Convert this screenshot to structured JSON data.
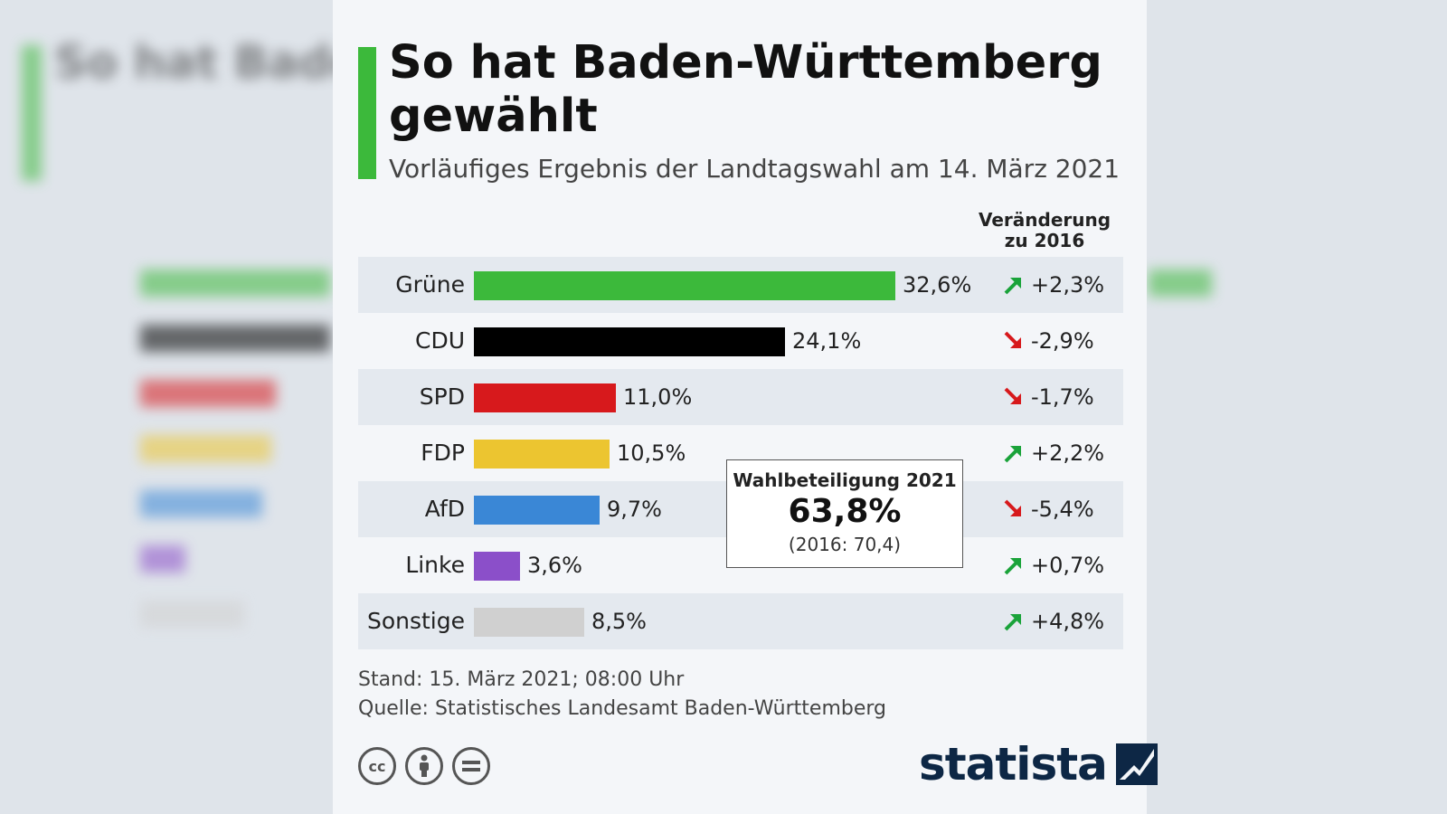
{
  "header": {
    "title": "So hat Baden-Württemberg gewählt",
    "subtitle": "Vorläufiges Ergebnis der Landtagswahl am 14. März 2021",
    "change_heading": "Veränderung zu 2016"
  },
  "chart_data": {
    "type": "bar",
    "orientation": "horizontal",
    "title": "So hat Baden-Württemberg gewählt",
    "categories": [
      "Grüne",
      "CDU",
      "SPD",
      "FDP",
      "AfD",
      "Linke",
      "Sonstige"
    ],
    "values": [
      32.6,
      24.1,
      11.0,
      10.5,
      9.7,
      3.6,
      8.5
    ],
    "value_labels": [
      "32,6%",
      "24,1%",
      "11,0%",
      "10,5%",
      "9,7%",
      "3,6%",
      "8,5%"
    ],
    "colors": [
      "#3cb93b",
      "#000000",
      "#d7191c",
      "#ecc530",
      "#3a87d6",
      "#8b4fc9",
      "#d0d0d0"
    ],
    "changes": [
      2.3,
      -2.9,
      -1.7,
      2.2,
      -5.4,
      0.7,
      4.8
    ],
    "change_labels": [
      "+2,3%",
      "-2,9%",
      "-1,7%",
      "+2,2%",
      "-5,4%",
      "+0,7%",
      "+4,8%"
    ],
    "xlim": [
      0,
      32.6
    ],
    "grid": false,
    "legend": "none"
  },
  "turnout": {
    "label": "Wahlbeteiligung 2021",
    "value": "63,8%",
    "previous": "(2016: 70,4)"
  },
  "footer": {
    "stand": "Stand: 15. März 2021; 08:00 Uhr",
    "source": "Quelle: Statistisches Landesamt Baden-Württemberg"
  },
  "licenses": {
    "cc": "cc"
  },
  "brand": {
    "logo_text": "statista",
    "up_color": "#1aa33a",
    "down_color": "#d7191c",
    "accent": "#3cb93b"
  }
}
